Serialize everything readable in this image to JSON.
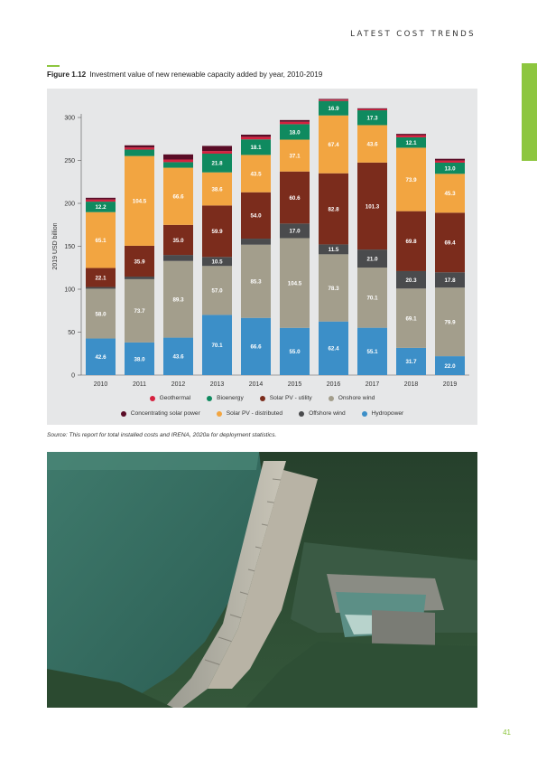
{
  "header": {
    "section": "LATEST COST TRENDS"
  },
  "figure": {
    "number": "Figure 1.12",
    "title": "Investment value of new renewable capacity added by year, 2010-2019",
    "source": "Source: This report for total installed costs and IRENA, 2020a for deployment statistics."
  },
  "chart_data": {
    "type": "bar",
    "stacked": true,
    "title": "",
    "xlabel": "",
    "ylabel": "2019 USD billion",
    "ylim": [
      0,
      300
    ],
    "yticks": [
      0,
      50,
      100,
      150,
      200,
      250,
      300
    ],
    "categories": [
      "2010",
      "2011",
      "2012",
      "2013",
      "2014",
      "2015",
      "2016",
      "2017",
      "2018",
      "2019"
    ],
    "series": [
      {
        "name": "Hydropower",
        "color": "#3c8fc8",
        "values": [
          42.6,
          38.0,
          43.6,
          70.1,
          66.6,
          55.0,
          62.4,
          55.1,
          31.7,
          22.0
        ],
        "labels": [
          "42.6",
          "38.0",
          "43.6",
          "70.1",
          "66.6",
          "55.0",
          "62.4",
          "55.1",
          "31.7",
          "22.0"
        ]
      },
      {
        "name": "Onshore wind",
        "color": "#a39e8c",
        "values": [
          58.0,
          73.7,
          89.3,
          57.0,
          85.3,
          104.5,
          78.3,
          70.1,
          69.1,
          79.9
        ],
        "labels": [
          "58.0",
          "73.7",
          "89.3",
          "57.0",
          "85.3",
          "104.5",
          "78.3",
          "70.1",
          "69.1",
          "79.9"
        ]
      },
      {
        "name": "Offshore wind",
        "color": "#4a4b4d",
        "values": [
          2.0,
          3.0,
          7.0,
          10.5,
          7.0,
          17.0,
          11.5,
          21.0,
          20.3,
          17.8
        ],
        "labels": [
          "",
          "",
          "",
          "10.5",
          "",
          "17.0",
          "11.5",
          "21.0",
          "20.3",
          "17.8"
        ]
      },
      {
        "name": "Solar PV - utility",
        "color": "#7b2c1c",
        "values": [
          22.1,
          35.9,
          35.0,
          59.9,
          54.0,
          60.6,
          82.8,
          101.3,
          69.8,
          69.4
        ],
        "labels": [
          "22.1",
          "35.9",
          "35.0",
          "59.9",
          "54.0",
          "60.6",
          "82.8",
          "101.3",
          "69.8",
          "69.4"
        ]
      },
      {
        "name": "Solar PV - distributed",
        "color": "#f2a541",
        "values": [
          65.1,
          104.5,
          66.6,
          38.6,
          43.5,
          37.1,
          67.4,
          43.6,
          73.9,
          45.3
        ],
        "labels": [
          "65.1",
          "104.5",
          "66.6",
          "38.6",
          "43.5",
          "37.1",
          "67.4",
          "43.6",
          "73.9",
          "45.3"
        ]
      },
      {
        "name": "Bioenergy",
        "color": "#0f8a5f",
        "values": [
          12.2,
          7.5,
          6.5,
          21.8,
          18.1,
          18.0,
          16.9,
          17.3,
          12.1,
          13.0
        ],
        "labels": [
          "12.2",
          "",
          "",
          "21.8",
          "18.1",
          "18.0",
          "16.9",
          "17.3",
          "12.1",
          "13.0"
        ]
      },
      {
        "name": "Geothermal",
        "color": "#d6213f",
        "values": [
          2.5,
          2.5,
          3.0,
          3.0,
          3.0,
          2.8,
          1.5,
          1.5,
          2.5,
          2.5
        ],
        "labels": [
          "",
          "",
          "",
          "",
          "",
          "",
          "",
          "",
          "",
          ""
        ]
      },
      {
        "name": "Concentrating solar power",
        "color": "#5a0c26",
        "values": [
          2.0,
          2.5,
          6.0,
          6.0,
          2.5,
          2.0,
          0.8,
          0.8,
          1.5,
          2.0
        ],
        "labels": [
          "",
          "",
          "",
          "",
          "",
          "",
          "",
          "",
          "",
          ""
        ]
      }
    ],
    "legend": {
      "placement": "bottom",
      "row1": [
        {
          "name": "Geothermal",
          "color": "#d6213f"
        },
        {
          "name": "Bioenergy",
          "color": "#0f8a5f"
        },
        {
          "name": "Solar PV - utility",
          "color": "#7b2c1c"
        },
        {
          "name": "Onshore wind",
          "color": "#a39e8c"
        }
      ],
      "row2": [
        {
          "name": "Concentrating solar power",
          "color": "#5a0c26"
        },
        {
          "name": "Solar PV - distributed",
          "color": "#f2a541"
        },
        {
          "name": "Offshore wind",
          "color": "#4a4b4d"
        },
        {
          "name": "Hydropower",
          "color": "#3c8fc8"
        }
      ]
    }
  },
  "page": {
    "number": "41"
  }
}
